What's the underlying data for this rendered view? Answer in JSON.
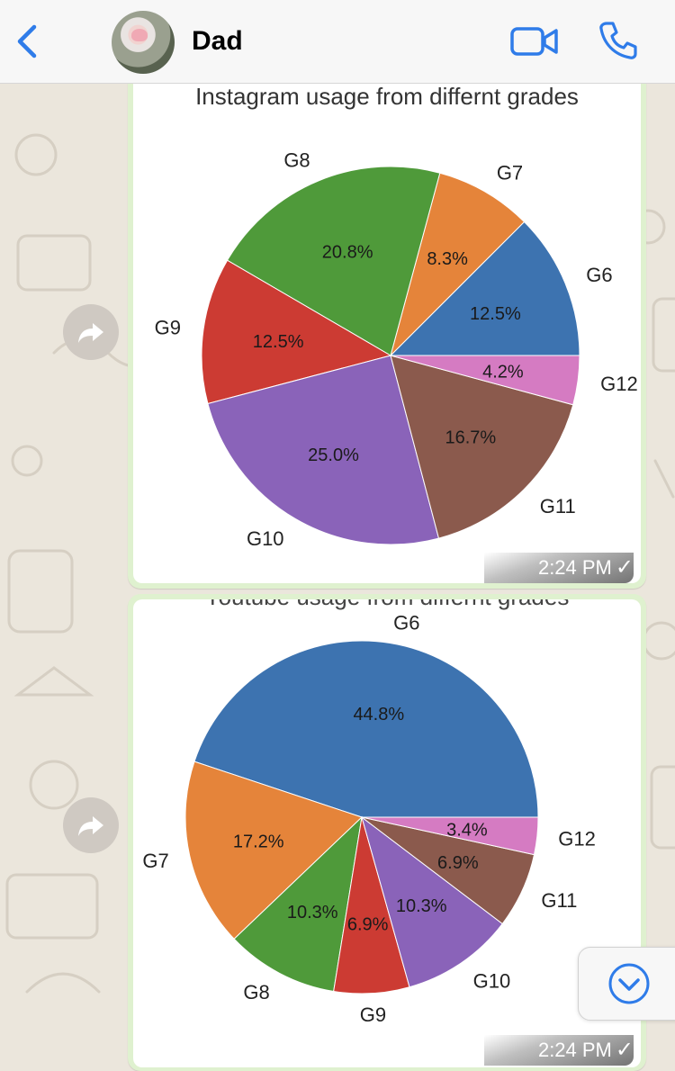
{
  "header": {
    "back_icon": "chevron-left-icon",
    "contact_name": "Dad",
    "video_icon": "video-call-icon",
    "phone_icon": "phone-call-icon",
    "accent": "#2f7ce9"
  },
  "messages": [
    {
      "time": "2:24 PM",
      "status": "✓",
      "forward_icon": "forward-icon"
    },
    {
      "time": "2:24 PM",
      "status": "✓",
      "forward_icon": "forward-icon"
    }
  ],
  "scroll_button_icon": "chevron-down-circle-icon",
  "chart_data": [
    {
      "type": "pie",
      "title": "Instagram usage from differnt grades",
      "slices": [
        {
          "label": "G6",
          "value": 12.5,
          "pct": "12.5%",
          "color": "#3d73b0"
        },
        {
          "label": "G7",
          "value": 8.3,
          "pct": "8.3%",
          "color": "#e5843a"
        },
        {
          "label": "G8",
          "value": 20.8,
          "pct": "20.8%",
          "color": "#4f9a3a"
        },
        {
          "label": "G9",
          "value": 12.5,
          "pct": "12.5%",
          "color": "#cc3b33"
        },
        {
          "label": "G10",
          "value": 25.0,
          "pct": "25.0%",
          "color": "#8a63b9"
        },
        {
          "label": "G11",
          "value": 16.7,
          "pct": "16.7%",
          "color": "#8b5a4d"
        },
        {
          "label": "G12",
          "value": 4.2,
          "pct": "4.2%",
          "color": "#d57bc2"
        }
      ]
    },
    {
      "type": "pie",
      "title": "Youtube usage from differnt grades",
      "slices": [
        {
          "label": "G6",
          "value": 44.8,
          "pct": "44.8%",
          "color": "#3d73b0"
        },
        {
          "label": "G7",
          "value": 17.2,
          "pct": "17.2%",
          "color": "#e5843a"
        },
        {
          "label": "G8",
          "value": 10.3,
          "pct": "10.3%",
          "color": "#4f9a3a"
        },
        {
          "label": "G9",
          "value": 6.9,
          "pct": "6.9%",
          "color": "#cc3b33"
        },
        {
          "label": "G10",
          "value": 10.3,
          "pct": "10.3%",
          "color": "#8a63b9"
        },
        {
          "label": "G11",
          "value": 6.9,
          "pct": "6.9%",
          "color": "#8b5a4d"
        },
        {
          "label": "G12",
          "value": 3.4,
          "pct": "3.4%",
          "color": "#d57bc2"
        }
      ]
    }
  ]
}
